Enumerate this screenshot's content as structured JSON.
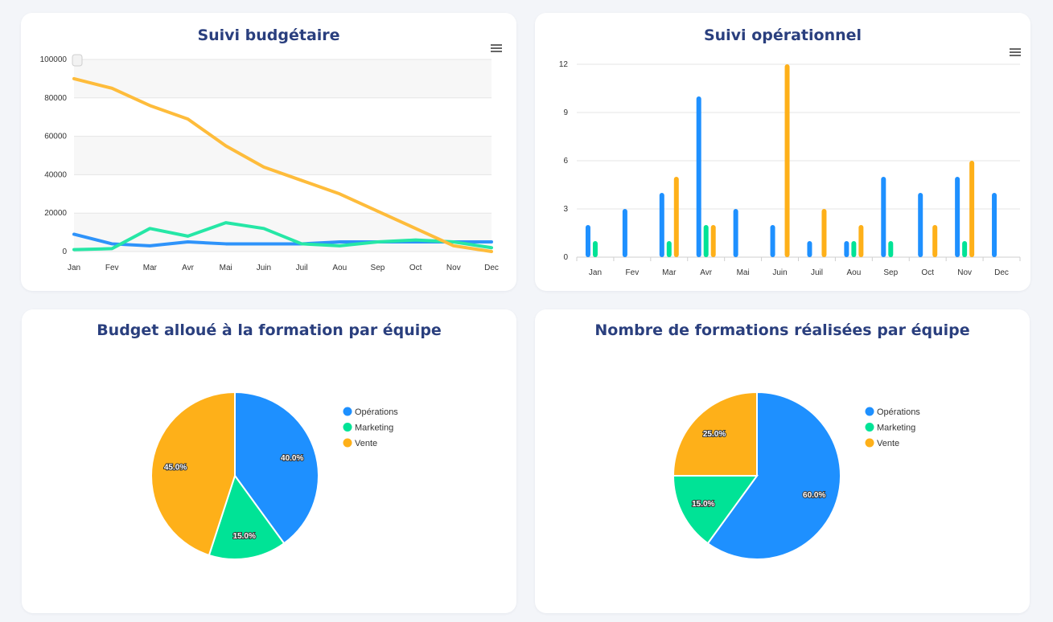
{
  "colors": {
    "operations": "#1e90ff",
    "marketing": "#00e396",
    "vente": "#feb019",
    "line_blue": "#2e93fa",
    "line_green": "#26e7a6",
    "line_orange": "#febc3b"
  },
  "chart_data": [
    {
      "id": "budget",
      "type": "line",
      "title": "Suivi budgétaire",
      "categories": [
        "Jan",
        "Fev",
        "Mar",
        "Avr",
        "Mai",
        "Juin",
        "Juil",
        "Aou",
        "Sep",
        "Oct",
        "Nov",
        "Dec"
      ],
      "yticks": [
        "0",
        "20000",
        "40000",
        "60000",
        "80000",
        "100000"
      ],
      "ylim": [
        0,
        100000
      ],
      "series": [
        {
          "values": [
            9000,
            4000,
            3000,
            5000,
            4000,
            4000,
            4000,
            5000,
            5000,
            5000,
            5000,
            5000
          ]
        },
        {
          "values": [
            1000,
            1500,
            12000,
            8000,
            15000,
            12000,
            4000,
            3000,
            5000,
            6000,
            5000,
            2000
          ]
        },
        {
          "values": [
            90000,
            85000,
            76000,
            69000,
            55000,
            44000,
            37000,
            30000,
            21000,
            12000,
            3000,
            0
          ]
        }
      ],
      "grid": true,
      "legend": "none"
    },
    {
      "id": "operationnel",
      "type": "bar",
      "title": "Suivi opérationnel",
      "categories": [
        "Jan",
        "Fev",
        "Mar",
        "Avr",
        "Mai",
        "Juin",
        "Juil",
        "Aou",
        "Sep",
        "Oct",
        "Nov",
        "Dec"
      ],
      "yticks": [
        "0",
        "3",
        "6",
        "9",
        "12"
      ],
      "ylim": [
        0,
        12
      ],
      "series": [
        {
          "values": [
            2,
            3,
            4,
            10,
            3,
            2,
            1,
            1,
            5,
            4,
            5,
            4
          ]
        },
        {
          "values": [
            1,
            0,
            1,
            2,
            0,
            0,
            0,
            1,
            1,
            0,
            1,
            0
          ]
        },
        {
          "values": [
            0,
            0,
            5,
            2,
            0,
            12,
            3,
            2,
            0,
            2,
            6,
            0
          ]
        }
      ],
      "grid": true,
      "legend": "none"
    },
    {
      "id": "pie-budget",
      "type": "pie",
      "title": "Budget alloué à la formation par équipe",
      "labels": [
        "Opérations",
        "Marketing",
        "Vente"
      ],
      "values": [
        40.0,
        15.0,
        45.0
      ],
      "value_labels": [
        "40.0%",
        "15.0%",
        "45.0%"
      ],
      "legend": "right"
    },
    {
      "id": "pie-formations",
      "type": "pie",
      "title": "Nombre de formations réalisées par équipe",
      "labels": [
        "Opérations",
        "Marketing",
        "Vente"
      ],
      "values": [
        60.0,
        15.0,
        25.0
      ],
      "value_labels": [
        "60.0%",
        "15.0%",
        "25.0%"
      ],
      "legend": "right"
    }
  ]
}
